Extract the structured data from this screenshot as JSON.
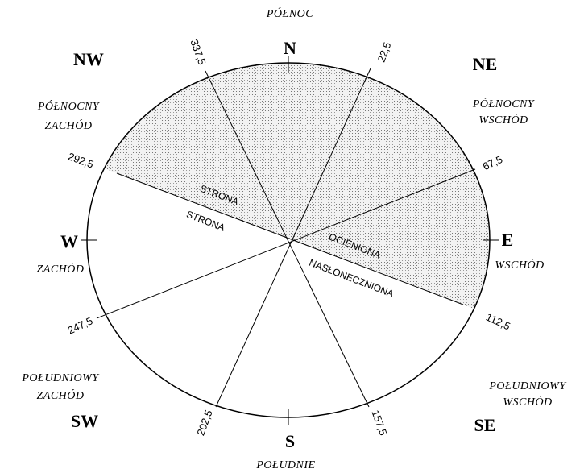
{
  "north": "PÓŁNOC",
  "south": "POŁUDNIE",
  "directions": [
    {
      "abbr": "N"
    },
    {
      "abbr": "NE",
      "name": [
        "PÓŁNOCNY",
        "WSCHÓD"
      ]
    },
    {
      "abbr": "E",
      "name": [
        "WSCHÓD"
      ]
    },
    {
      "abbr": "SE",
      "name": [
        "POŁUDNIOWY",
        "WSCHÓD"
      ]
    },
    {
      "abbr": "S"
    },
    {
      "abbr": "SW",
      "name": [
        "POŁUDNIOWY",
        "ZACHÓD"
      ]
    },
    {
      "abbr": "W",
      "name": [
        "ZACHÓD"
      ]
    },
    {
      "abbr": "NW",
      "name": [
        "PÓŁNOCNY",
        "ZACHÓD"
      ]
    }
  ],
  "angles": [
    "337,5",
    "22,5",
    "67,5",
    "112,5",
    "157,5",
    "202,5",
    "247,5",
    "292,5"
  ],
  "sides": {
    "shaded": [
      "STRONA",
      "OCIENIONA"
    ],
    "sunny": [
      "STRONA",
      "NASŁONECZNIONA"
    ]
  }
}
